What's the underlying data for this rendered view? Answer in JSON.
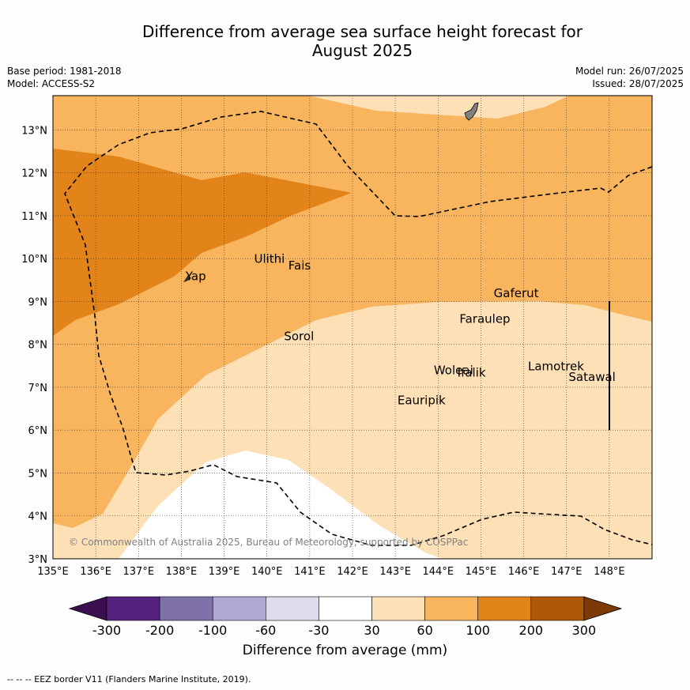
{
  "title_line1": "Difference from average sea surface height forecast for",
  "title_line2": "August 2025",
  "meta_left": [
    "Base period: 1981-2018",
    "Model: ACCESS-S2"
  ],
  "meta_right": [
    "Model run: 26/07/2025",
    "Issued: 28/07/2025"
  ],
  "copyright": "© Commonwealth of Australia 2025, Bureau of Meteorology, supported by COSPPac",
  "footer": "--  --  -- EEZ border V11 (Flanders Marine Institute, 2019).",
  "map": {
    "lon_range": [
      135,
      149
    ],
    "lat_range": [
      3,
      13.8
    ],
    "lon_ticks": [
      "135°E",
      "136°E",
      "137°E",
      "138°E",
      "139°E",
      "140°E",
      "141°E",
      "142°E",
      "143°E",
      "144°E",
      "145°E",
      "146°E",
      "147°E",
      "148°E"
    ],
    "lat_ticks": [
      "3°N",
      "4°N",
      "5°N",
      "6°N",
      "7°N",
      "8°N",
      "9°N",
      "10°N",
      "11°N",
      "12°N",
      "13°N"
    ],
    "places": [
      {
        "name": "Yap",
        "lon": 138.1,
        "lat": 9.5
      },
      {
        "name": "Ulithi",
        "lon": 139.7,
        "lat": 9.9
      },
      {
        "name": "Fais",
        "lon": 140.5,
        "lat": 9.75
      },
      {
        "name": "Sorol",
        "lon": 140.4,
        "lat": 8.1
      },
      {
        "name": "Gaferut",
        "lon": 145.3,
        "lat": 9.1
      },
      {
        "name": "Faraulep",
        "lon": 144.5,
        "lat": 8.5
      },
      {
        "name": "Woleai",
        "lon": 143.9,
        "lat": 7.3
      },
      {
        "name": "Ifalik",
        "lon": 144.45,
        "lat": 7.25
      },
      {
        "name": "Lamotrek",
        "lon": 146.1,
        "lat": 7.4
      },
      {
        "name": "Satawal",
        "lon": 147.05,
        "lat": 7.15
      },
      {
        "name": "Eauripik",
        "lon": 143.05,
        "lat": 6.6
      }
    ]
  },
  "colorbar": {
    "label": "Difference from average (mm)",
    "ticks": [
      "-300",
      "-200",
      "-100",
      "-60",
      "-30",
      "30",
      "60",
      "100",
      "200",
      "300"
    ],
    "colors": [
      "#3b0f4f",
      "#55237f",
      "#7f72aa",
      "#b0a8d2",
      "#dcdcec",
      "#ffffff",
      "#fde0b6",
      "#f9b45e",
      "#e2841a",
      "#b15807",
      "#7e3a06"
    ]
  }
}
